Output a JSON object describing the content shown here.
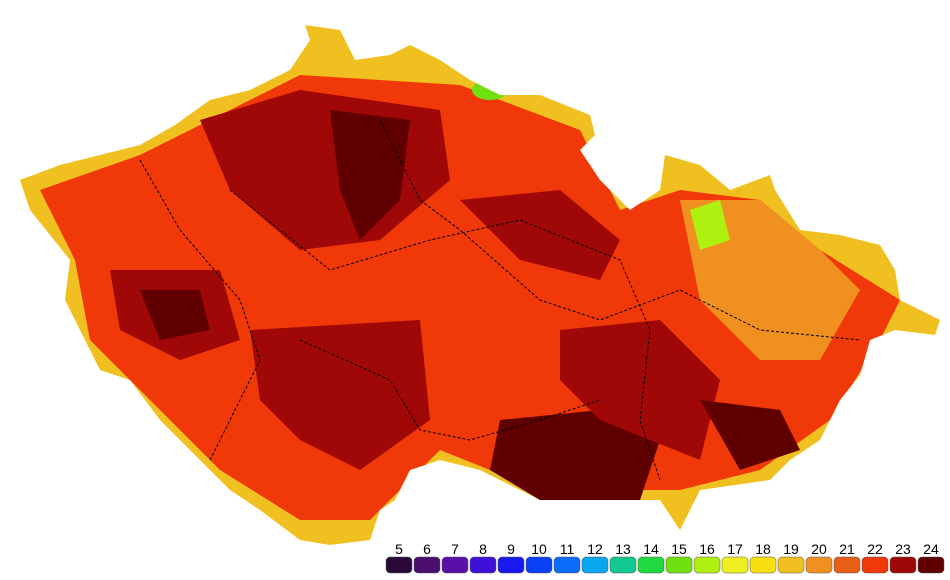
{
  "legend": {
    "items": [
      {
        "label": 5,
        "color": "#2a0838"
      },
      {
        "label": 6,
        "color": "#4a0f6e"
      },
      {
        "label": 7,
        "color": "#5a10a8"
      },
      {
        "label": 8,
        "color": "#4010d8"
      },
      {
        "label": 9,
        "color": "#1a18f0"
      },
      {
        "label": 10,
        "color": "#0a40f8"
      },
      {
        "label": 11,
        "color": "#0a6cf8"
      },
      {
        "label": 12,
        "color": "#08a8f0"
      },
      {
        "label": 13,
        "color": "#10c890"
      },
      {
        "label": 14,
        "color": "#20d840"
      },
      {
        "label": 15,
        "color": "#70e010"
      },
      {
        "label": 16,
        "color": "#b0f010"
      },
      {
        "label": 17,
        "color": "#f0f020"
      },
      {
        "label": 18,
        "color": "#f8e010"
      },
      {
        "label": 19,
        "color": "#f0c020"
      },
      {
        "label": 20,
        "color": "#f09020"
      },
      {
        "label": 21,
        "color": "#e86018"
      },
      {
        "label": 22,
        "color": "#f03808"
      },
      {
        "label": 23,
        "color": "#a00808"
      },
      {
        "label": 24,
        "color": "#600000"
      }
    ]
  }
}
